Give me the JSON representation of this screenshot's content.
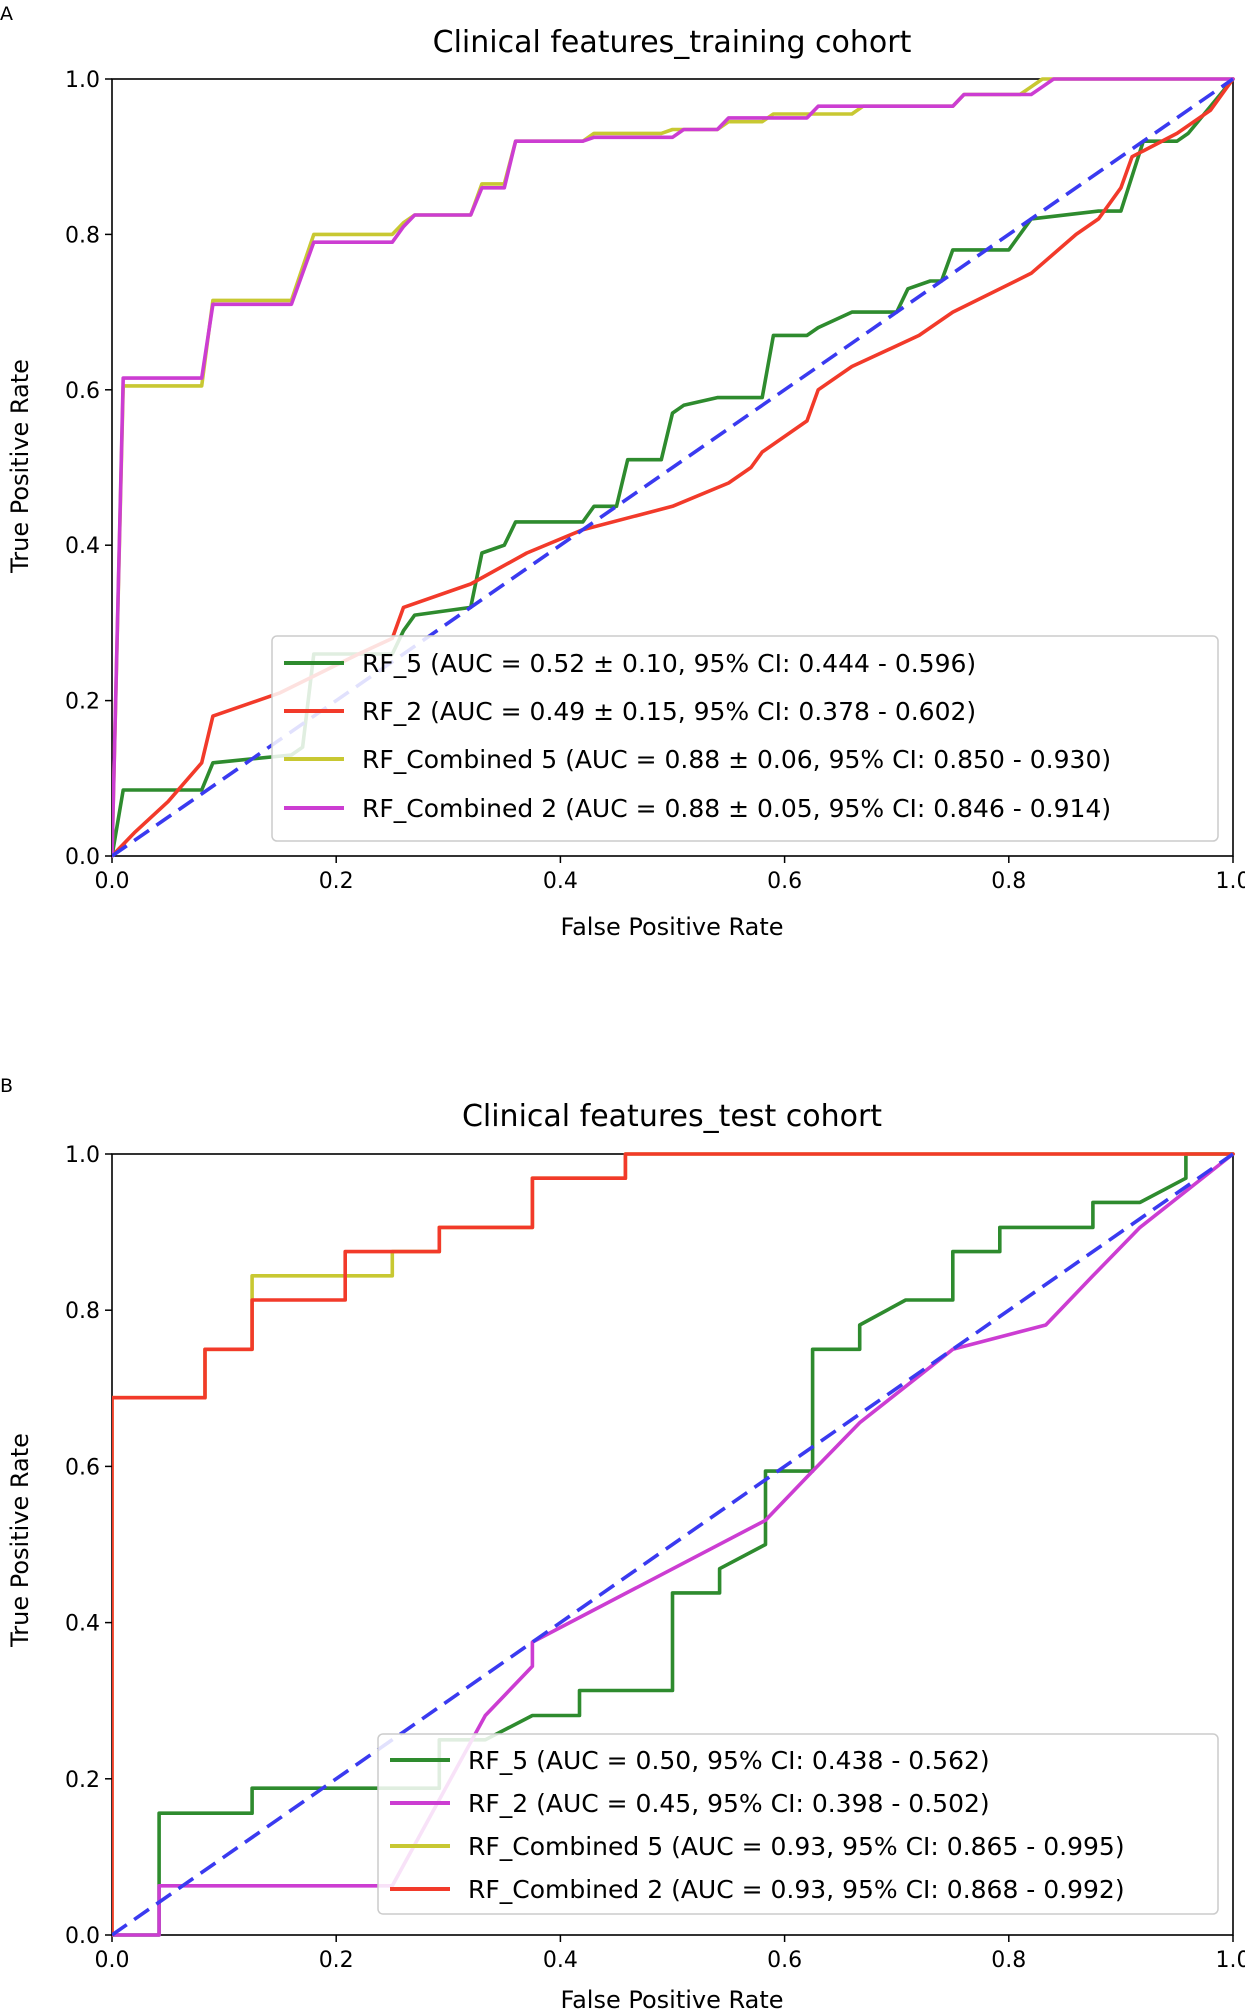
{
  "chart_data": [
    {
      "panel": "A",
      "type": "line",
      "title": "Clinical features_training cohort",
      "xlabel": "False Positive Rate",
      "ylabel": "True Positive Rate",
      "xlim": [
        0.0,
        1.0
      ],
      "ylim": [
        0.0,
        1.0
      ],
      "xticks": [
        "0.0",
        "0.2",
        "0.4",
        "0.6",
        "0.8",
        "1.0"
      ],
      "yticks": [
        "0.0",
        "0.2",
        "0.4",
        "0.6",
        "0.8",
        "1.0"
      ],
      "grid": false,
      "legend_position": "lower-right",
      "diagonal": {
        "x": [
          0,
          1
        ],
        "y": [
          0,
          1
        ],
        "color": "#3a3af0",
        "style": "dashed"
      },
      "series": [
        {
          "name": "RF_5 (AUC = 0.52 ± 0.10, 95% CI: 0.444 - 0.596)",
          "color": "#2e8b2e",
          "x": [
            0,
            0.01,
            0.08,
            0.09,
            0.16,
            0.17,
            0.18,
            0.25,
            0.26,
            0.27,
            0.32,
            0.33,
            0.35,
            0.36,
            0.42,
            0.43,
            0.45,
            0.46,
            0.49,
            0.5,
            0.51,
            0.54,
            0.58,
            0.59,
            0.62,
            0.63,
            0.66,
            0.67,
            0.7,
            0.71,
            0.73,
            0.74,
            0.75,
            0.76,
            0.8,
            0.82,
            0.88,
            0.9,
            0.92,
            0.95,
            0.96,
            1.0
          ],
          "y": [
            0,
            0.085,
            0.085,
            0.12,
            0.13,
            0.14,
            0.26,
            0.26,
            0.29,
            0.31,
            0.32,
            0.39,
            0.4,
            0.43,
            0.43,
            0.45,
            0.45,
            0.51,
            0.51,
            0.57,
            0.58,
            0.59,
            0.59,
            0.67,
            0.67,
            0.68,
            0.7,
            0.7,
            0.7,
            0.73,
            0.74,
            0.74,
            0.78,
            0.78,
            0.78,
            0.82,
            0.83,
            0.83,
            0.92,
            0.92,
            0.93,
            1.0
          ]
        },
        {
          "name": "RF_2 (AUC = 0.49 ± 0.15, 95% CI: 0.378 - 0.602)",
          "color": "#f23a2a",
          "x": [
            0,
            0.02,
            0.05,
            0.08,
            0.09,
            0.15,
            0.22,
            0.25,
            0.26,
            0.32,
            0.37,
            0.42,
            0.5,
            0.55,
            0.57,
            0.58,
            0.62,
            0.63,
            0.66,
            0.72,
            0.75,
            0.82,
            0.86,
            0.88,
            0.9,
            0.91,
            0.95,
            0.98,
            1.0
          ],
          "y": [
            0,
            0.03,
            0.07,
            0.12,
            0.18,
            0.21,
            0.26,
            0.28,
            0.32,
            0.35,
            0.39,
            0.42,
            0.45,
            0.48,
            0.5,
            0.52,
            0.56,
            0.6,
            0.63,
            0.67,
            0.7,
            0.75,
            0.8,
            0.82,
            0.86,
            0.9,
            0.93,
            0.96,
            1.0
          ]
        },
        {
          "name": "RF_Combined 5 (AUC = 0.88 ± 0.06, 95% CI: 0.850 - 0.930)",
          "color": "#c8c832",
          "x": [
            0,
            0.01,
            0.08,
            0.09,
            0.16,
            0.18,
            0.25,
            0.26,
            0.27,
            0.32,
            0.33,
            0.35,
            0.36,
            0.42,
            0.43,
            0.49,
            0.5,
            0.54,
            0.55,
            0.58,
            0.59,
            0.66,
            0.67,
            0.75,
            0.76,
            0.81,
            0.82,
            0.83,
            1.0
          ],
          "y": [
            0,
            0.605,
            0.605,
            0.715,
            0.715,
            0.8,
            0.8,
            0.815,
            0.825,
            0.825,
            0.865,
            0.865,
            0.92,
            0.92,
            0.93,
            0.93,
            0.935,
            0.935,
            0.945,
            0.945,
            0.955,
            0.955,
            0.965,
            0.965,
            0.98,
            0.98,
            0.99,
            1.0,
            1.0
          ]
        },
        {
          "name": "RF_Combined 2 (AUC = 0.88 ± 0.05, 95% CI: 0.846 - 0.914)",
          "color": "#cc3dd2",
          "x": [
            0,
            0.01,
            0.08,
            0.09,
            0.16,
            0.18,
            0.25,
            0.26,
            0.27,
            0.32,
            0.33,
            0.35,
            0.36,
            0.42,
            0.43,
            0.5,
            0.51,
            0.54,
            0.55,
            0.62,
            0.63,
            0.75,
            0.76,
            0.82,
            0.83,
            0.84,
            1.0
          ],
          "y": [
            0,
            0.615,
            0.615,
            0.71,
            0.71,
            0.79,
            0.79,
            0.81,
            0.825,
            0.825,
            0.86,
            0.86,
            0.92,
            0.92,
            0.925,
            0.925,
            0.935,
            0.935,
            0.95,
            0.95,
            0.965,
            0.965,
            0.98,
            0.98,
            0.99,
            1.0,
            1.0
          ]
        }
      ]
    },
    {
      "panel": "B",
      "type": "line",
      "title": "Clinical features_test cohort",
      "xlabel": "False Positive Rate",
      "ylabel": "True Positive Rate",
      "xlim": [
        0.0,
        1.0
      ],
      "ylim": [
        0.0,
        1.0
      ],
      "xticks": [
        "0.0",
        "0.2",
        "0.4",
        "0.6",
        "0.8",
        "1.0"
      ],
      "yticks": [
        "0.0",
        "0.2",
        "0.4",
        "0.6",
        "0.8",
        "1.0"
      ],
      "grid": false,
      "legend_position": "lower-right",
      "diagonal": {
        "x": [
          0,
          1
        ],
        "y": [
          0,
          1
        ],
        "color": "#3a3af0",
        "style": "dashed"
      },
      "series": [
        {
          "name": "RF_5 (AUC = 0.50, 95% CI: 0.438 - 0.562)",
          "color": "#2e8b2e",
          "x": [
            0,
            0.042,
            0.042,
            0.125,
            0.125,
            0.292,
            0.292,
            0.333,
            0.375,
            0.375,
            0.417,
            0.417,
            0.5,
            0.5,
            0.542,
            0.542,
            0.583,
            0.583,
            0.625,
            0.625,
            0.667,
            0.667,
            0.708,
            0.75,
            0.75,
            0.792,
            0.792,
            0.875,
            0.875,
            0.917,
            0.958,
            0.958,
            1.0
          ],
          "y": [
            0,
            0,
            0.156,
            0.156,
            0.188,
            0.188,
            0.25,
            0.25,
            0.281,
            0.281,
            0.281,
            0.313,
            0.313,
            0.438,
            0.438,
            0.469,
            0.5,
            0.594,
            0.594,
            0.75,
            0.75,
            0.781,
            0.813,
            0.813,
            0.875,
            0.875,
            0.906,
            0.906,
            0.938,
            0.938,
            0.969,
            1.0,
            1.0
          ]
        },
        {
          "name": "RF_2 (AUC = 0.45, 95% CI: 0.398 - 0.502)",
          "color": "#cc3dd2",
          "x": [
            0,
            0.042,
            0.042,
            0.25,
            0.333,
            0.375,
            0.375,
            0.583,
            0.625,
            0.667,
            0.75,
            0.833,
            0.875,
            0.917,
            1.0
          ],
          "y": [
            0,
            0,
            0.063,
            0.063,
            0.281,
            0.344,
            0.375,
            0.531,
            0.594,
            0.656,
            0.75,
            0.781,
            0.844,
            0.906,
            1.0
          ]
        },
        {
          "name": "RF_Combined 5 (AUC = 0.93, 95% CI: 0.865 - 0.995)",
          "color": "#c8c832",
          "x": [
            0,
            0,
            0.083,
            0.083,
            0.125,
            0.125,
            0.25,
            0.25,
            0.292,
            0.292,
            0.375,
            0.375,
            0.458,
            0.458,
            1.0
          ],
          "y": [
            0,
            0.688,
            0.688,
            0.75,
            0.75,
            0.844,
            0.844,
            0.875,
            0.875,
            0.906,
            0.906,
            0.969,
            0.969,
            1.0,
            1.0
          ]
        },
        {
          "name": "RF_Combined 2 (AUC = 0.93, 95% CI: 0.868 - 0.992)",
          "color": "#f23a2a",
          "x": [
            0,
            0,
            0.083,
            0.083,
            0.125,
            0.125,
            0.208,
            0.208,
            0.292,
            0.292,
            0.375,
            0.375,
            0.458,
            0.458,
            1.0
          ],
          "y": [
            0,
            0.688,
            0.688,
            0.75,
            0.75,
            0.813,
            0.813,
            0.875,
            0.875,
            0.906,
            0.906,
            0.969,
            0.969,
            1.0,
            1.0
          ]
        }
      ]
    }
  ]
}
